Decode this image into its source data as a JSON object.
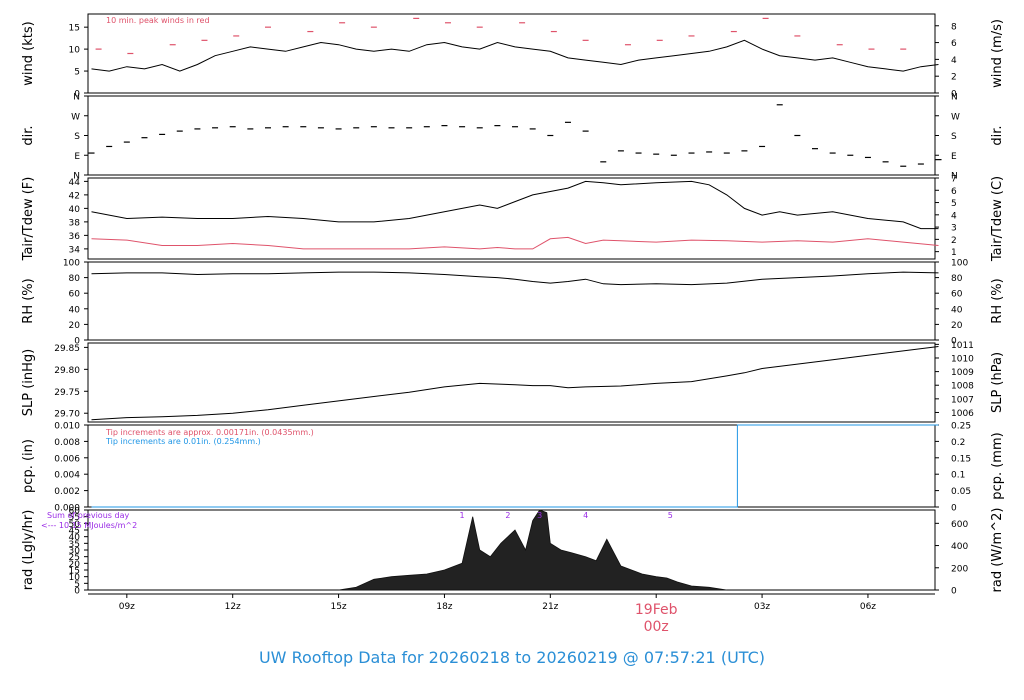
{
  "footer_title": "UW Rooftop Data for 20260218  to  20260219 @ 07:57:21  (UTC)",
  "colors": {
    "red": "#df536b",
    "blue": "#2297e6",
    "purple": "#9a2be6",
    "black": "#000000"
  },
  "chart_data": [
    {
      "id": "wind",
      "type": "line",
      "ylabel": "wind (kts)",
      "ylabel_right": "wind (m/s)",
      "ylim": [
        0,
        18
      ],
      "yticks": [
        "0",
        "5",
        "10",
        "15"
      ],
      "yticks_right": [
        "0",
        "2",
        "4",
        "6",
        "8"
      ],
      "annotation": "10 min. peak winds in red",
      "series": [
        {
          "color": "#000000",
          "x": [
            8.0,
            8.5,
            9.0,
            9.5,
            10.0,
            10.5,
            11.0,
            11.5,
            12.0,
            12.5,
            13.0,
            13.5,
            14.0,
            14.5,
            15.0,
            15.5,
            16.0,
            16.5,
            17.0,
            17.5,
            18.0,
            18.5,
            19.0,
            19.5,
            20.0,
            20.5,
            21.0,
            21.5,
            22.0,
            22.5,
            23.0,
            23.5,
            24.0,
            24.5,
            25.0,
            25.5,
            26.0,
            26.5,
            27.0,
            27.5,
            28.0,
            28.5,
            29.0,
            29.5,
            30.0,
            30.5,
            31.0,
            31.5,
            32.0
          ],
          "y": [
            5.5,
            5.0,
            6.0,
            5.5,
            6.5,
            5.0,
            6.5,
            8.5,
            9.5,
            10.5,
            10.0,
            9.5,
            10.5,
            11.5,
            11.0,
            10.0,
            9.5,
            10.0,
            9.5,
            11.0,
            11.5,
            10.5,
            10.0,
            11.5,
            10.5,
            10.0,
            9.5,
            8.0,
            7.5,
            7.0,
            6.5,
            7.5,
            8.0,
            8.5,
            9.0,
            9.5,
            10.5,
            12.0,
            10.0,
            8.5,
            8.0,
            7.5,
            8.0,
            7.0,
            6.0,
            5.5,
            5.0,
            6.0,
            6.5
          ]
        },
        {
          "color": "#df536b",
          "x": [
            8.2,
            9.1,
            10.3,
            11.2,
            12.1,
            13.0,
            14.2,
            15.1,
            16.0,
            17.2,
            18.1,
            19.0,
            20.2,
            21.1,
            22.0,
            23.2,
            24.1,
            25.0,
            26.2,
            27.1,
            28.0,
            29.2,
            30.1,
            31.0
          ],
          "y": [
            10,
            9,
            11,
            12,
            13,
            15,
            14,
            16,
            15,
            17,
            16,
            15,
            16,
            14,
            12,
            11,
            12,
            13,
            14,
            17,
            13,
            11,
            10,
            10
          ]
        }
      ]
    },
    {
      "id": "dir",
      "type": "scatter",
      "ylabel": "dir.",
      "ylabel_right": "dir.",
      "ylim": [
        0,
        360
      ],
      "yticks": [
        "N",
        "E",
        "S",
        "W",
        "N"
      ],
      "yticks_right": [
        "N",
        "E",
        "S",
        "W",
        "N"
      ],
      "series": [
        {
          "color": "#000000",
          "x": [
            8.0,
            8.5,
            9.0,
            9.5,
            10.0,
            10.5,
            11.0,
            11.5,
            12.0,
            12.5,
            13.0,
            13.5,
            14.0,
            14.5,
            15.0,
            15.5,
            16.0,
            16.5,
            17.0,
            17.5,
            18.0,
            18.5,
            19.0,
            19.5,
            20.0,
            20.5,
            21.0,
            21.5,
            22.0,
            22.5,
            23.0,
            23.5,
            24.0,
            24.5,
            25.0,
            25.5,
            26.0,
            26.5,
            27.0,
            27.5,
            28.0,
            28.5,
            29.0,
            29.5,
            30.0,
            30.5,
            31.0,
            31.5,
            32.0
          ],
          "y": [
            100,
            130,
            150,
            170,
            185,
            200,
            210,
            215,
            220,
            210,
            215,
            220,
            220,
            215,
            210,
            215,
            220,
            215,
            215,
            220,
            225,
            220,
            215,
            225,
            220,
            210,
            180,
            240,
            200,
            60,
            110,
            100,
            95,
            90,
            100,
            105,
            100,
            110,
            130,
            320,
            180,
            120,
            100,
            90,
            80,
            60,
            40,
            50,
            70
          ]
        }
      ]
    },
    {
      "id": "temp",
      "type": "line",
      "ylabel": "Tair/Tdew (F)",
      "ylabel_right": "Tair/Tdew (C)",
      "ylim": [
        32.5,
        44.5
      ],
      "yticks": [
        "34",
        "36",
        "38",
        "40",
        "42",
        "44"
      ],
      "yticks_right": [
        "1",
        "2",
        "3",
        "4",
        "5",
        "6",
        "7"
      ],
      "series": [
        {
          "color": "#000000",
          "x": [
            8.0,
            9.0,
            10.0,
            11.0,
            12.0,
            13.0,
            14.0,
            15.0,
            16.0,
            17.0,
            18.0,
            19.0,
            19.5,
            20.0,
            20.5,
            21.0,
            21.5,
            22.0,
            22.5,
            23.0,
            24.0,
            25.0,
            25.5,
            26.0,
            26.5,
            27.0,
            27.5,
            28.0,
            29.0,
            30.0,
            31.0,
            31.5,
            32.0
          ],
          "y": [
            39.5,
            38.5,
            38.7,
            38.5,
            38.5,
            38.8,
            38.5,
            38.0,
            38.0,
            38.5,
            39.5,
            40.5,
            40.0,
            41.0,
            42.0,
            42.5,
            43.0,
            44.0,
            43.8,
            43.5,
            43.8,
            44.0,
            43.5,
            42.0,
            40.0,
            39.0,
            39.5,
            39.0,
            39.5,
            38.5,
            38.0,
            37.0,
            37.0
          ]
        },
        {
          "color": "#df536b",
          "x": [
            8.0,
            9.0,
            10.0,
            11.0,
            12.0,
            13.0,
            14.0,
            15.0,
            16.0,
            17.0,
            18.0,
            19.0,
            19.5,
            20.0,
            20.5,
            21.0,
            21.5,
            22.0,
            22.5,
            23.0,
            24.0,
            25.0,
            26.0,
            27.0,
            28.0,
            29.0,
            30.0,
            31.0,
            32.0
          ],
          "y": [
            35.5,
            35.3,
            34.5,
            34.5,
            34.8,
            34.5,
            34.0,
            34.0,
            34.0,
            34.0,
            34.3,
            34.0,
            34.2,
            34.0,
            34.0,
            35.5,
            35.7,
            34.8,
            35.3,
            35.2,
            35.0,
            35.3,
            35.2,
            35.0,
            35.2,
            35.0,
            35.5,
            35.0,
            34.5
          ]
        }
      ]
    },
    {
      "id": "rh",
      "type": "line",
      "ylabel": "RH (%)",
      "ylabel_right": "RH (%)",
      "ylim": [
        0,
        100
      ],
      "yticks": [
        "0",
        "20",
        "40",
        "60",
        "80",
        "100"
      ],
      "yticks_right": [
        "0",
        "20",
        "40",
        "60",
        "80",
        "100"
      ],
      "series": [
        {
          "color": "#000000",
          "x": [
            8.0,
            9.0,
            10.0,
            11.0,
            12.0,
            13.0,
            14.0,
            15.0,
            16.0,
            17.0,
            18.0,
            19.0,
            19.5,
            20.0,
            20.5,
            21.0,
            21.5,
            22.0,
            22.5,
            23.0,
            24.0,
            25.0,
            26.0,
            27.0,
            28.0,
            29.0,
            30.0,
            31.0,
            32.0
          ],
          "y": [
            85,
            86,
            86,
            84,
            85,
            85,
            86,
            87,
            87,
            86,
            84,
            81,
            80,
            78,
            75,
            73,
            75,
            78,
            72,
            71,
            72,
            71,
            73,
            78,
            80,
            82,
            85,
            87,
            86
          ]
        }
      ]
    },
    {
      "id": "slp",
      "type": "line",
      "ylabel": "SLP (inHg)",
      "ylabel_right": "SLP (hPa)",
      "ylim": [
        29.68,
        29.86
      ],
      "yticks": [
        "29.70",
        "29.75",
        "29.80",
        "29.85"
      ],
      "yticks_right": [
        "1006",
        "1007",
        "1008",
        "1009",
        "1010",
        "1011"
      ],
      "series": [
        {
          "color": "#000000",
          "x": [
            8.0,
            9.0,
            10.0,
            11.0,
            12.0,
            13.0,
            14.0,
            15.0,
            16.0,
            17.0,
            18.0,
            19.0,
            20.0,
            20.5,
            21.0,
            21.5,
            22.0,
            23.0,
            24.0,
            25.0,
            26.0,
            26.5,
            27.0,
            28.0,
            29.0,
            30.0,
            31.0,
            32.0
          ],
          "y": [
            29.685,
            29.69,
            29.692,
            29.695,
            29.7,
            29.708,
            29.718,
            29.728,
            29.738,
            29.748,
            29.76,
            29.768,
            29.765,
            29.763,
            29.763,
            29.758,
            29.76,
            29.762,
            29.768,
            29.772,
            29.785,
            29.792,
            29.802,
            29.812,
            29.822,
            29.832,
            29.842,
            29.852
          ]
        }
      ]
    },
    {
      "id": "pcp",
      "type": "line",
      "ylabel": "pcp. (in)",
      "ylabel_right": "pcp. (mm)",
      "ylim": [
        0,
        0.01
      ],
      "yticks": [
        "0.000",
        "0.002",
        "0.004",
        "0.006",
        "0.008",
        "0.010"
      ],
      "yticks_right": [
        "0",
        "0.05",
        "0.1",
        "0.15",
        "0.2",
        "0.25"
      ],
      "annotation_1": "Tip increments are approx. 0.00171in. (0.0435mm.)",
      "annotation_2": "Tip increments are 0.01in. (0.254mm.)",
      "series": [
        {
          "color": "#2297e6",
          "x": [
            8.0,
            26.3,
            26.3,
            32.0
          ],
          "y": [
            0,
            0,
            0.01,
            0.01
          ]
        }
      ]
    },
    {
      "id": "rad",
      "type": "area",
      "ylabel": "rad (Lgly/hr)",
      "ylabel_right": "rad (W/m^2)",
      "ylim": [
        0,
        60
      ],
      "yticks": [
        "0",
        "5",
        "10",
        "15",
        "20",
        "25",
        "30",
        "35",
        "40",
        "45",
        "50",
        "55",
        "60"
      ],
      "yticks_right": [
        "0",
        "200",
        "400",
        "600"
      ],
      "annotation_1": "Sum of previous day",
      "annotation_2": "<--- 10.15 MJoules/m^2",
      "peak_labels": [
        "1",
        "2",
        "3",
        "4",
        "5"
      ],
      "peak_x": [
        18.5,
        19.8,
        20.7,
        22.0,
        24.4
      ],
      "series": [
        {
          "color": "#000000",
          "x": [
            15.0,
            15.5,
            16.0,
            16.5,
            17.0,
            17.5,
            18.0,
            18.5,
            18.8,
            19.0,
            19.3,
            19.6,
            20.0,
            20.3,
            20.5,
            20.7,
            20.9,
            21.0,
            21.3,
            21.6,
            22.0,
            22.3,
            22.6,
            23.0,
            23.3,
            23.6,
            24.0,
            24.3,
            24.6,
            25.0,
            25.5,
            26.0
          ],
          "y": [
            0,
            2,
            8,
            10,
            11,
            12,
            15,
            20,
            55,
            30,
            25,
            35,
            45,
            30,
            52,
            60,
            58,
            35,
            30,
            28,
            25,
            22,
            38,
            18,
            15,
            12,
            10,
            9,
            6,
            3,
            2,
            0
          ]
        }
      ]
    }
  ],
  "x_axis": {
    "ticks": [
      "09z",
      "12z",
      "15z",
      "18z",
      "21z",
      "03z",
      "06z"
    ],
    "tick_hours": [
      9,
      12,
      15,
      18,
      21,
      27,
      30
    ],
    "date_label": "19Feb",
    "date_hour_label": "00z",
    "xlim": [
      7.9,
      31.9
    ]
  }
}
